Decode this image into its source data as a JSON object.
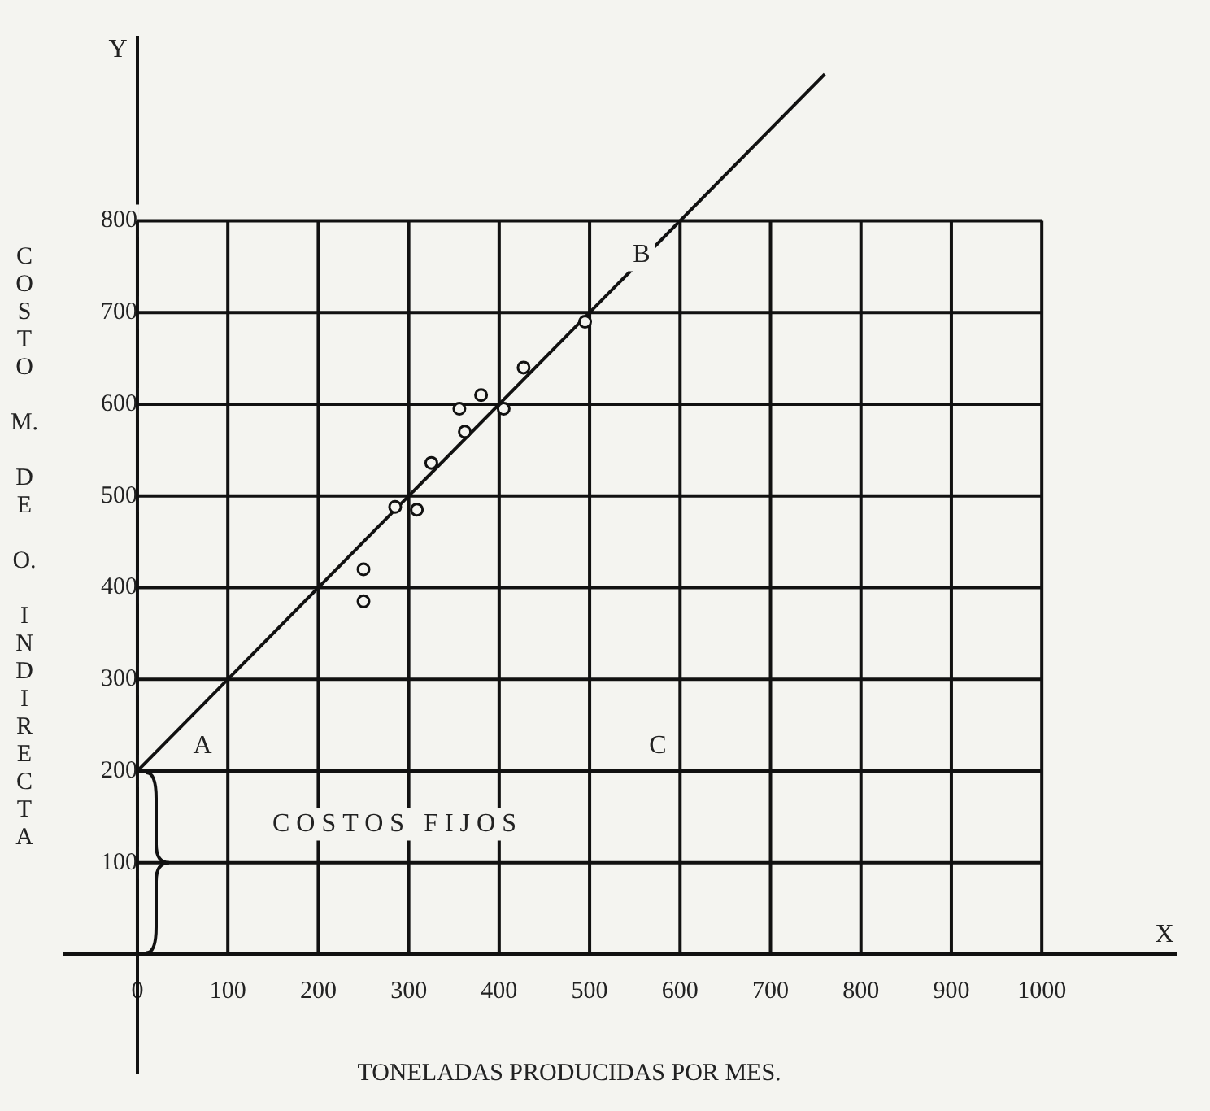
{
  "chart_data": {
    "type": "scatter",
    "xlabel": "TONELADAS PRODUCIDAS POR MES.",
    "ylabel": "COSTO M. DE O. INDIRECTA",
    "xlim": [
      -80,
      1150
    ],
    "ylim": [
      -130,
      1000
    ],
    "xticks": [
      0,
      100,
      200,
      300,
      400,
      500,
      600,
      700,
      800,
      900,
      1000
    ],
    "yticks": [
      100,
      200,
      300,
      400,
      500,
      600,
      700,
      800
    ],
    "grid": true,
    "legend": false,
    "marker": "circle",
    "series": [
      {
        "color": "#111111",
        "x": [
          250,
          250,
          285,
          309,
          325,
          356,
          362,
          380,
          405,
          427,
          495
        ],
        "values": [
          420,
          385,
          488,
          485,
          536,
          595,
          570,
          610,
          595,
          640,
          690
        ]
      },
      {
        "type": "line",
        "color": "#111111",
        "marker": "none",
        "line_style": "solid",
        "x": [
          0,
          760
        ],
        "values": [
          200,
          960
        ]
      }
    ],
    "annotations": [
      "Y",
      "X",
      "A",
      "B",
      "C",
      "COSTOS FIJOS"
    ]
  }
}
